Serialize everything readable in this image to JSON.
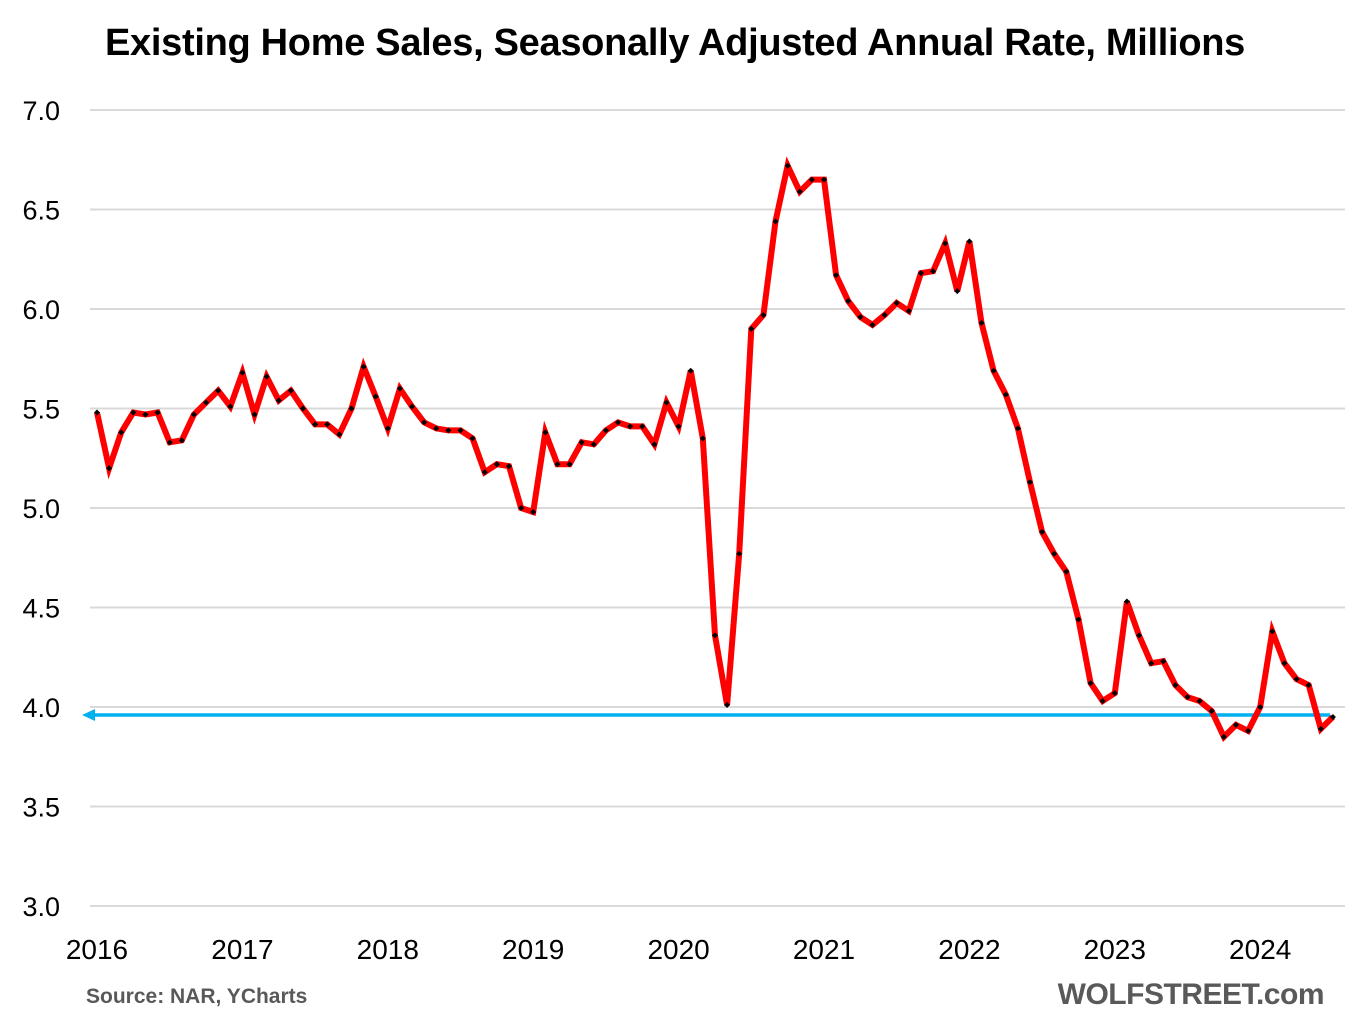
{
  "chart_data": {
    "type": "line",
    "title": "Existing Home Sales, Seasonally Adjusted Annual Rate, Millions",
    "xlabel": "",
    "ylabel": "",
    "ylim": [
      3.0,
      7.0
    ],
    "yticks": [
      "3.0",
      "3.5",
      "4.0",
      "4.5",
      "5.0",
      "5.5",
      "6.0",
      "6.5",
      "7.0"
    ],
    "ytick_values": [
      3.0,
      3.5,
      4.0,
      4.5,
      5.0,
      5.5,
      6.0,
      6.5,
      7.0
    ],
    "xticks": [
      "2016",
      "2017",
      "2018",
      "2019",
      "2020",
      "2021",
      "2022",
      "2023",
      "2024"
    ],
    "x_start": "2016-01",
    "x_frequency": "monthly",
    "grid": true,
    "legend": "none",
    "series": [
      {
        "name": "Existing Home Sales (SAAR, millions)",
        "color": "#ff0000",
        "marker_color": "#000000",
        "values": [
          5.48,
          5.2,
          5.38,
          5.48,
          5.47,
          5.48,
          5.33,
          5.34,
          5.47,
          5.53,
          5.59,
          5.51,
          5.68,
          5.47,
          5.66,
          5.54,
          5.59,
          5.5,
          5.42,
          5.42,
          5.37,
          5.5,
          5.71,
          5.56,
          5.4,
          5.6,
          5.51,
          5.43,
          5.4,
          5.39,
          5.39,
          5.35,
          5.18,
          5.22,
          5.21,
          5.0,
          4.98,
          5.38,
          5.22,
          5.22,
          5.33,
          5.32,
          5.39,
          5.43,
          5.41,
          5.41,
          5.32,
          5.53,
          5.41,
          5.69,
          5.35,
          4.36,
          4.01,
          4.77,
          5.9,
          5.97,
          6.44,
          6.72,
          6.59,
          6.65,
          6.65,
          6.17,
          6.04,
          5.96,
          5.92,
          5.97,
          6.03,
          5.99,
          6.18,
          6.19,
          6.33,
          6.09,
          6.34,
          5.93,
          5.69,
          5.57,
          5.4,
          5.13,
          4.88,
          4.77,
          4.68,
          4.44,
          4.12,
          4.03,
          4.07,
          4.53,
          4.36,
          4.22,
          4.23,
          4.11,
          4.05,
          4.03,
          3.98,
          3.85,
          3.91,
          3.88,
          4.0,
          4.38,
          4.22,
          4.14,
          4.11,
          3.89,
          3.95
        ]
      }
    ],
    "reference_line": {
      "value": 3.96,
      "color": "#00b0f0",
      "direction": "arrow pointing left"
    },
    "source": "Source: NAR, YCharts",
    "brand": "WOLFSTREET.com"
  }
}
